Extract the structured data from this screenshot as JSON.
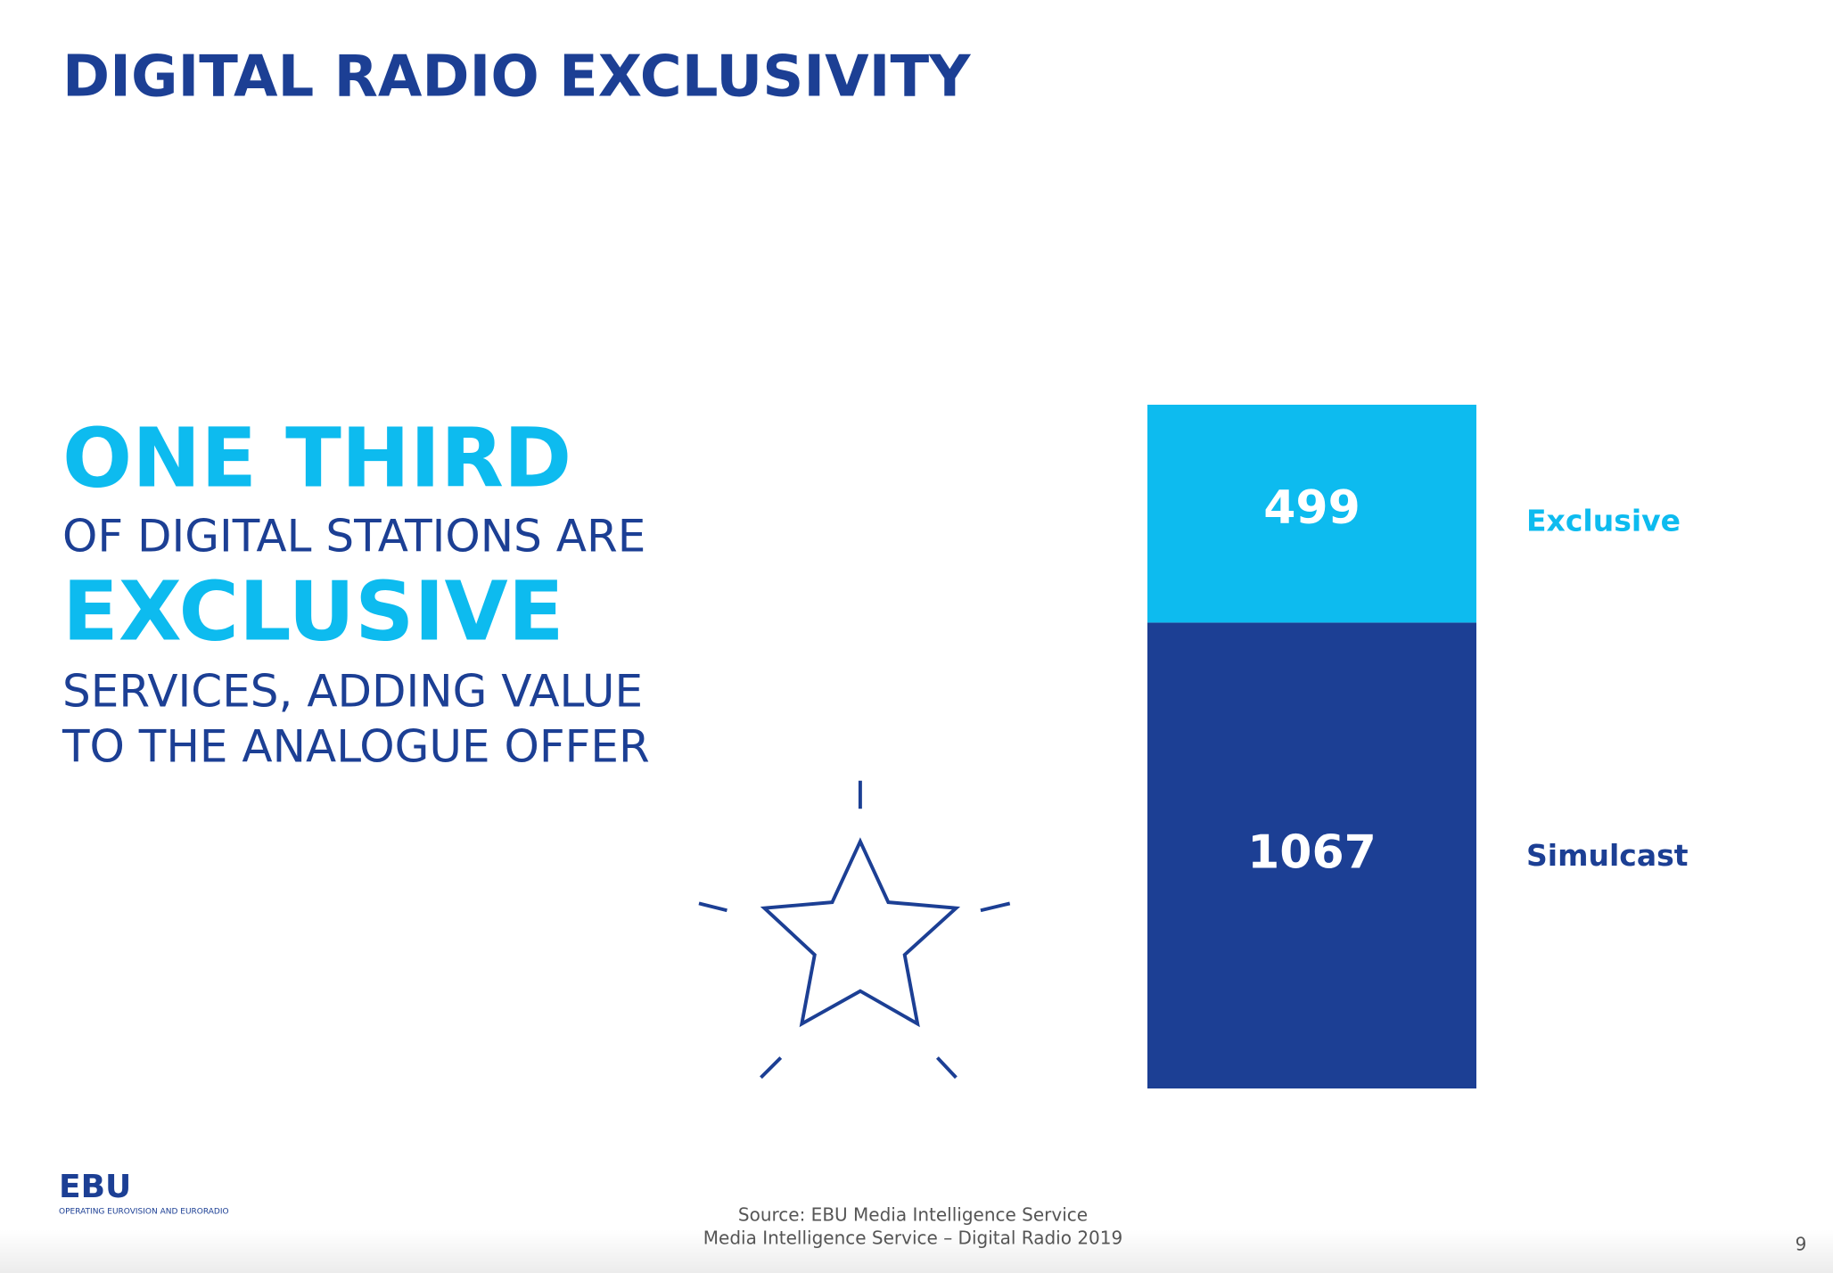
{
  "title": "DIGITAL RADIO EXCLUSIVITY",
  "headline": [
    "ONE THIRD",
    "OF DIGITAL STATIONS ARE",
    "EXCLUSIVE",
    "SERVICES, ADDING VALUE",
    "TO THE ANALOGUE OFFER"
  ],
  "chart_data": {
    "type": "stacked_bar",
    "series": [
      {
        "name": "Simulcast",
        "color": "#1c3f94",
        "values": [
          1067
        ]
      },
      {
        "name": "Exclusive",
        "color": "#0dbbef",
        "values": [
          499
        ]
      }
    ]
  },
  "logo": {
    "name": "EBU",
    "tagline": "OPERATING EUROVISION AND EURORADIO"
  },
  "source": [
    "Source: EBU Media Intelligence Service",
    "Media Intelligence Service – Digital Radio 2019"
  ],
  "page_number": 9
}
